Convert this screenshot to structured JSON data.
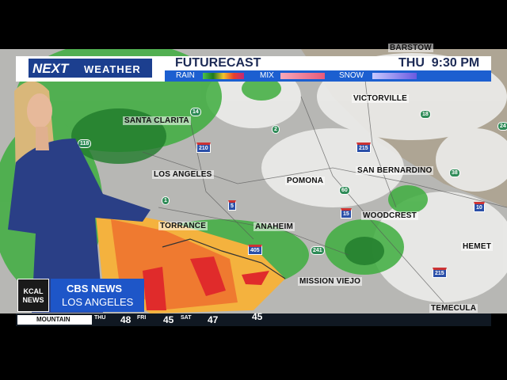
{
  "header": {
    "brand": "NEXT",
    "brand_sub": "WEATHER",
    "title": "FUTURECAST",
    "time": "THU  9:30 PM",
    "legend": [
      "RAIN",
      "MIX",
      "SNOW"
    ]
  },
  "map": {
    "cities": [
      "BARSTOW",
      "VICTORVILLE",
      "SANTA CLARITA",
      "LOS ANGELES",
      "POMONA",
      "SAN BERNARDINO",
      "TORRANCE",
      "ANAHEIM",
      "WOODCREST",
      "HEMET",
      "MISSION VIEJO",
      "TEMECULA"
    ],
    "highways": [
      "14",
      "2",
      "118",
      "210",
      "215",
      "18",
      "38",
      "10",
      "60",
      "15",
      "5",
      "405",
      "241",
      "215",
      "1",
      "24"
    ]
  },
  "lower_third": {
    "station": "KCAL NEWS",
    "network": "CBS NEWS",
    "market": "LOS ANGELES"
  },
  "ticker": {
    "region": "MOUNTAIN",
    "days": [
      {
        "day": "THU",
        "temp": 48
      },
      {
        "day": "FRI",
        "temp": 45
      },
      {
        "day": "SAT",
        "temp": 47
      },
      {
        "temp": 45
      }
    ]
  }
}
